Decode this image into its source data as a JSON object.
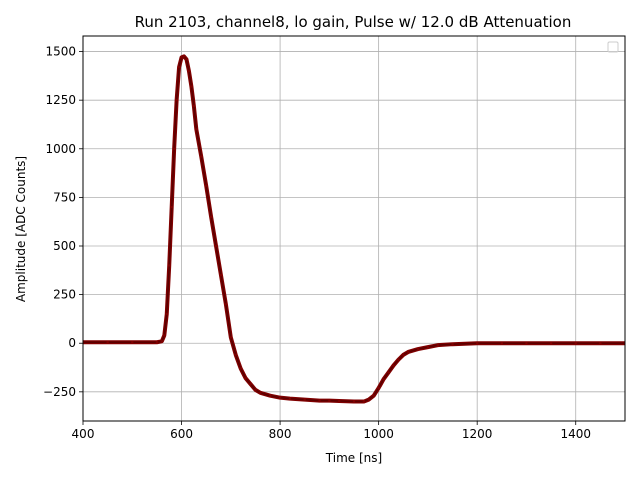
{
  "chart_data": {
    "type": "line",
    "title": "Run 2103, channel8, lo gain, Pulse w/ 12.0 dB Attenuation",
    "xlabel": "Time [ns]",
    "ylabel": "Amplitude [ADC Counts]",
    "xlim": [
      400,
      1500
    ],
    "ylim": [
      -400,
      1580
    ],
    "xticks": [
      400,
      600,
      800,
      1000,
      1200,
      1400
    ],
    "yticks": [
      -250,
      0,
      250,
      500,
      750,
      1000,
      1250,
      1500
    ],
    "xtick_labels": [
      "400",
      "600",
      "800",
      "1000",
      "1200",
      "1400"
    ],
    "ytick_labels": [
      "−250",
      "0",
      "250",
      "500",
      "750",
      "1000",
      "1250",
      "1500"
    ],
    "grid": true,
    "legend": "top-right (empty)",
    "series": [
      {
        "color": "#800000",
        "x": [
          400,
          450,
          500,
          550,
          560,
          565,
          570,
          575,
          580,
          585,
          590,
          595,
          600,
          605,
          610,
          615,
          620,
          625,
          630,
          640,
          650,
          660,
          670,
          680,
          690,
          700,
          710,
          720,
          730,
          740,
          750,
          760,
          780,
          800,
          820,
          850,
          880,
          900,
          920,
          950,
          970,
          980,
          990,
          1000,
          1010,
          1020,
          1030,
          1040,
          1050,
          1060,
          1080,
          1100,
          1120,
          1150,
          1200,
          1250,
          1300,
          1350,
          1400,
          1450,
          1500
        ],
        "y": [
          5,
          5,
          5,
          5,
          10,
          40,
          150,
          400,
          700,
          1000,
          1250,
          1420,
          1470,
          1475,
          1460,
          1400,
          1320,
          1220,
          1100,
          960,
          810,
          650,
          500,
          350,
          200,
          30,
          -60,
          -130,
          -180,
          -210,
          -240,
          -255,
          -270,
          -280,
          -285,
          -290,
          -295,
          -295,
          -297,
          -300,
          -300,
          -290,
          -270,
          -230,
          -185,
          -150,
          -115,
          -85,
          -60,
          -45,
          -30,
          -20,
          -10,
          -5,
          0,
          0,
          0,
          0,
          0,
          0,
          0
        ]
      }
    ]
  }
}
